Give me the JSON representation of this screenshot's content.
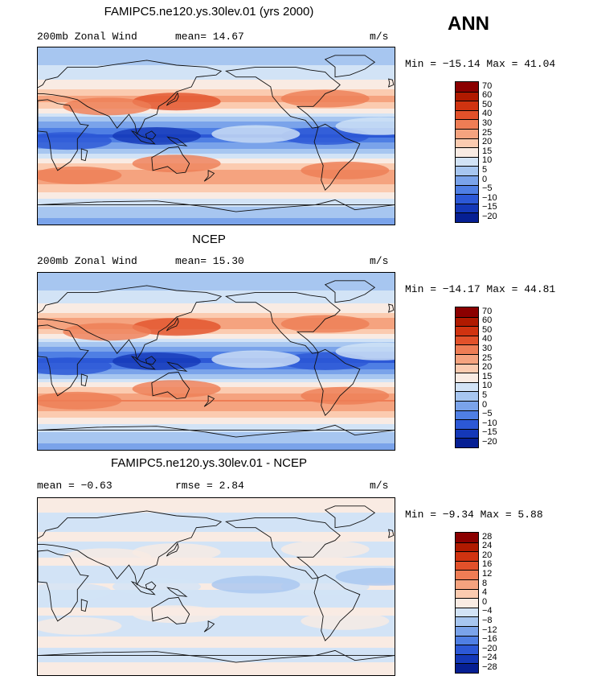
{
  "season": "ANN",
  "chart_data": [
    {
      "type": "heatmap",
      "title": "FAMIPC5.ne120.ys.30lev.01 (yrs 2000)",
      "left_label": "200mb Zonal Wind",
      "stat1_text": "mean=  14.67",
      "stat2_text": "",
      "units": "m/s",
      "minmax_text": "Min = −15.14 Max =  41.04",
      "min": -15.14,
      "max": 41.04,
      "mean": 14.67,
      "levels": [
        "70",
        "60",
        "50",
        "40",
        "30",
        "25",
        "20",
        "15",
        "10",
        "5",
        "0",
        "−5",
        "−10",
        "−15",
        "−20"
      ],
      "palette": [
        "#8b0000",
        "#b01a00",
        "#d03310",
        "#e2512a",
        "#ee7d55",
        "#f5a37f",
        "#fbcbb0",
        "#f9ebe3",
        "#d2e3f6",
        "#a7c6f0",
        "#7aa3ea",
        "#4f7fe4",
        "#2c58d6",
        "#1438b8",
        "#061f93"
      ],
      "bands": [
        {
          "lat": 80,
          "value": 8
        },
        {
          "lat": 65,
          "value": 12
        },
        {
          "lat": 50,
          "value": 18
        },
        {
          "lat": 38,
          "value": 28
        },
        {
          "lat": 25,
          "value": 17
        },
        {
          "lat": 12,
          "value": 2
        },
        {
          "lat": 0,
          "value": -6
        },
        {
          "lat": -12,
          "value": 4
        },
        {
          "lat": -25,
          "value": 18
        },
        {
          "lat": -40,
          "value": 29
        },
        {
          "lat": -55,
          "value": 22
        },
        {
          "lat": -70,
          "value": 11
        },
        {
          "lat": -85,
          "value": 4
        }
      ]
    },
    {
      "type": "heatmap",
      "title": "NCEP",
      "left_label": "200mb Zonal Wind",
      "stat1_text": "mean=  15.30",
      "stat2_text": "",
      "units": "m/s",
      "minmax_text": "Min = −14.17 Max =  44.81",
      "min": -14.17,
      "max": 44.81,
      "mean": 15.3,
      "levels": [
        "70",
        "60",
        "50",
        "40",
        "30",
        "25",
        "20",
        "15",
        "10",
        "5",
        "0",
        "−5",
        "−10",
        "−15",
        "−20"
      ],
      "palette": [
        "#8b0000",
        "#b01a00",
        "#d03310",
        "#e2512a",
        "#ee7d55",
        "#f5a37f",
        "#fbcbb0",
        "#f9ebe3",
        "#d2e3f6",
        "#a7c6f0",
        "#7aa3ea",
        "#4f7fe4",
        "#2c58d6",
        "#1438b8",
        "#061f93"
      ],
      "bands": [
        {
          "lat": 80,
          "value": 8
        },
        {
          "lat": 65,
          "value": 12
        },
        {
          "lat": 50,
          "value": 19
        },
        {
          "lat": 38,
          "value": 30
        },
        {
          "lat": 25,
          "value": 17
        },
        {
          "lat": 12,
          "value": 2
        },
        {
          "lat": 0,
          "value": -7
        },
        {
          "lat": -12,
          "value": 4
        },
        {
          "lat": -25,
          "value": 19
        },
        {
          "lat": -40,
          "value": 31
        },
        {
          "lat": -55,
          "value": 22
        },
        {
          "lat": -70,
          "value": 11
        },
        {
          "lat": -85,
          "value": 4
        }
      ]
    },
    {
      "type": "heatmap",
      "title": "FAMIPC5.ne120.ys.30lev.01 - NCEP",
      "left_label": "mean =  −0.63",
      "stat1_text": "rmse =   2.84",
      "stat2_text": "",
      "units": "m/s",
      "minmax_text": "Min =  −9.34 Max =   5.88",
      "min": -9.34,
      "max": 5.88,
      "mean": -0.63,
      "rmse": 2.84,
      "levels": [
        "28",
        "24",
        "20",
        "16",
        "12",
        "8",
        "4",
        "0",
        "−4",
        "−8",
        "−12",
        "−16",
        "−20",
        "−24",
        "−28"
      ],
      "palette": [
        "#8b0000",
        "#b01a00",
        "#d03310",
        "#e2512a",
        "#ee7d55",
        "#f5a37f",
        "#fbcbb0",
        "#f9ebe3",
        "#d2e3f6",
        "#a7c6f0",
        "#7aa3ea",
        "#4f7fe4",
        "#2c58d6",
        "#1438b8",
        "#061f93"
      ],
      "bands": [
        {
          "lat": 80,
          "value": 1
        },
        {
          "lat": 65,
          "value": -2
        },
        {
          "lat": 50,
          "value": 1
        },
        {
          "lat": 38,
          "value": -2
        },
        {
          "lat": 25,
          "value": 1
        },
        {
          "lat": 12,
          "value": -2
        },
        {
          "lat": 0,
          "value": 1
        },
        {
          "lat": -12,
          "value": -2
        },
        {
          "lat": -25,
          "value": 1
        },
        {
          "lat": -40,
          "value": -2
        },
        {
          "lat": -55,
          "value": 1
        },
        {
          "lat": -70,
          "value": -1
        },
        {
          "lat": -85,
          "value": 1
        }
      ]
    }
  ]
}
